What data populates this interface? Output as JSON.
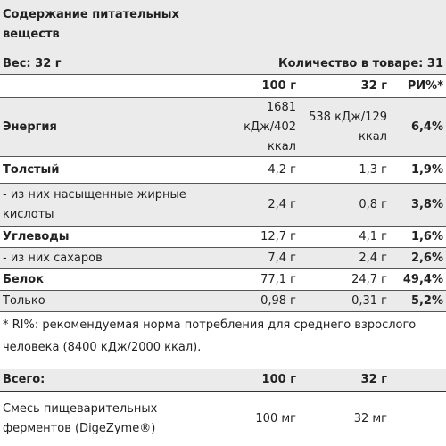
{
  "header": {
    "title": "Содержание питательных веществ",
    "weight": "Вес: 32 г",
    "quantity": "Количество в товаре: 31"
  },
  "table": {
    "columns": [
      "100 г",
      "32 г",
      "РИ%*"
    ],
    "rows": [
      {
        "label": "Энергия",
        "v100": "1681 кДж/402 ккал",
        "v32": "538 кДж/129 ккал",
        "ri": "6,4%"
      },
      {
        "label": "Толстый",
        "v100": "4,2 г",
        "v32": "1,3 г",
        "ri": "1,9%"
      },
      {
        "label": "- из них насыщенные жирные кислоты",
        "v100": "2,4 г",
        "v32": "0,8 г",
        "ri": "3,8%"
      },
      {
        "label": "Углеводы",
        "v100": "12,7 г",
        "v32": "4,1 г",
        "ri": "1,6%"
      },
      {
        "label": "- из них сахаров",
        "v100": "7,4 г",
        "v32": "2,4 г",
        "ri": "2,6%"
      },
      {
        "label": "Белок",
        "v100": "77,1 г",
        "v32": "24,7 г",
        "ri": "49,4%"
      },
      {
        "label": "Только",
        "v100": "0,98 г",
        "v32": "0,31 г",
        "ri": "5,2%"
      }
    ]
  },
  "footnote": "* RI%: рекомендуемая норма потребления для среднего взрослого человека (8400 кДж/2000 ккал).",
  "extra": {
    "header_label": "Всего:",
    "columns": [
      "100 г",
      "32 г"
    ],
    "row": {
      "label": "Смесь пищеварительных ферментов (DigeZyme®)",
      "v100": "100 мг",
      "v32": "32 мг"
    }
  }
}
